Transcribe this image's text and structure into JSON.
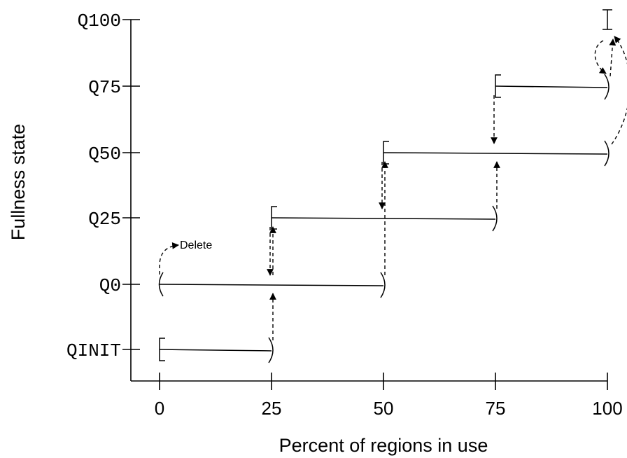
{
  "chart_data": {
    "type": "state-transition-diagram",
    "xlabel": "Percent of regions in use",
    "ylabel": "Fullness state",
    "x_ticks": [
      "0",
      "25",
      "50",
      "75",
      "100"
    ],
    "states": [
      "QINIT",
      "Q0",
      "Q25",
      "Q50",
      "Q75",
      "Q100"
    ],
    "ranges": [
      {
        "state": "QINIT",
        "from": 0,
        "to": 25,
        "from_closed": true,
        "to_closed": false
      },
      {
        "state": "Q0",
        "from": 0,
        "to": 50,
        "from_closed": false,
        "to_closed": false
      },
      {
        "state": "Q25",
        "from": 25,
        "to": 75,
        "from_closed": true,
        "to_closed": false
      },
      {
        "state": "Q50",
        "from": 50,
        "to": 100,
        "from_closed": true,
        "to_closed": false
      },
      {
        "state": "Q75",
        "from": 75,
        "to": 100,
        "from_closed": true,
        "to_closed": false
      },
      {
        "state": "Q100",
        "from": 100,
        "to": 100,
        "from_closed": true,
        "to_closed": true
      }
    ],
    "transitions": [
      {
        "from": "QINIT",
        "to": "Q0",
        "at": 25
      },
      {
        "from": "Q0",
        "to": "Q25",
        "at": 25
      },
      {
        "from": "Q25",
        "to": "Q0",
        "at": 25
      },
      {
        "from": "Q0",
        "to": "Q50",
        "at": 50
      },
      {
        "from": "Q50",
        "to": "Q25",
        "at": 50
      },
      {
        "from": "Q25",
        "to": "Q50",
        "at": 75
      },
      {
        "from": "Q75",
        "to": "Q50",
        "at": 75
      },
      {
        "from": "Q50",
        "to": "Q100",
        "at": 100
      },
      {
        "from": "Q100",
        "to": "Q75",
        "at": 100
      },
      {
        "from": "Q75",
        "to": "Q100",
        "at": 100
      }
    ],
    "annotations": [
      {
        "text": "Delete",
        "state": "Q0",
        "at": 0
      }
    ]
  }
}
